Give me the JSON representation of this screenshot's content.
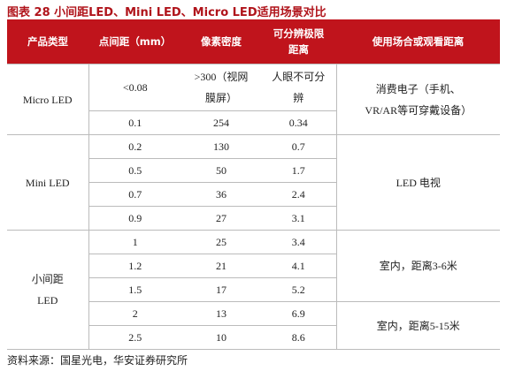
{
  "title": "图表 28 小间距LED、Mini LED、Micro LED适用场景对比",
  "table": {
    "headers": [
      "产品类型",
      "点间距（mm）",
      "像素密度",
      "可分辨极限距离",
      "使用场合或观看距离"
    ],
    "groups": [
      {
        "name": "Micro LED",
        "rows": [
          [
            "<0.08",
            ">300（视网膜屏）",
            "人眼不可分辨"
          ],
          [
            "0.1",
            "254",
            "0.34"
          ]
        ],
        "usage": [
          {
            "text": "消费电子（手机、VR/AR等可穿戴设备）",
            "span": 2
          }
        ]
      },
      {
        "name": "Mini LED",
        "rows": [
          [
            "0.2",
            "130",
            "0.7"
          ],
          [
            "0.5",
            "50",
            "1.7"
          ],
          [
            "0.7",
            "36",
            "2.4"
          ],
          [
            "0.9",
            "27",
            "3.1"
          ]
        ],
        "usage": [
          {
            "text": "LED 电视",
            "span": 4
          }
        ]
      },
      {
        "name": "小间距LED",
        "rows": [
          [
            "1",
            "25",
            "3.4"
          ],
          [
            "1.2",
            "21",
            "4.1"
          ],
          [
            "1.5",
            "17",
            "5.2"
          ],
          [
            "2",
            "13",
            "6.9"
          ],
          [
            "2.5",
            "10",
            "8.6"
          ]
        ],
        "usage": [
          {
            "text": "室内，距离3-6米",
            "span": 3
          },
          {
            "text": "室内，距离5-15米",
            "span": 2
          }
        ]
      }
    ]
  },
  "source": "资料来源：国星光电，华安证券研究所"
}
